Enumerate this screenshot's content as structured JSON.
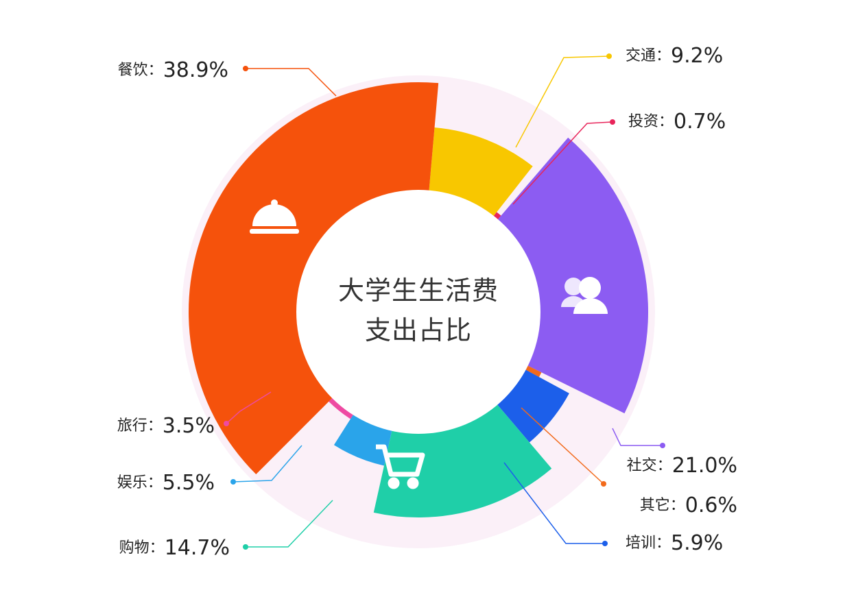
{
  "chart_data": {
    "type": "pie",
    "title": "大学生生活费支出占比",
    "separator": "：",
    "categories": [
      "交通",
      "投资",
      "社交",
      "其它",
      "培训",
      "购物",
      "娱乐",
      "旅行",
      "餐饮"
    ],
    "values": [
      9.2,
      0.7,
      21.0,
      0.6,
      5.9,
      14.7,
      5.5,
      3.5,
      38.9
    ],
    "value_labels": [
      "9.2%",
      "0.7%",
      "21.0%",
      "0.6%",
      "5.9%",
      "14.7%",
      "5.5%",
      "3.5%",
      "38.9%"
    ],
    "colors": [
      "#f8c700",
      "#e8245a",
      "#8c5cf2",
      "#f26a1b",
      "#1c5fea",
      "#1fcfa8",
      "#2aa4ea",
      "#ee4aa2",
      "#f5520c"
    ]
  }
}
